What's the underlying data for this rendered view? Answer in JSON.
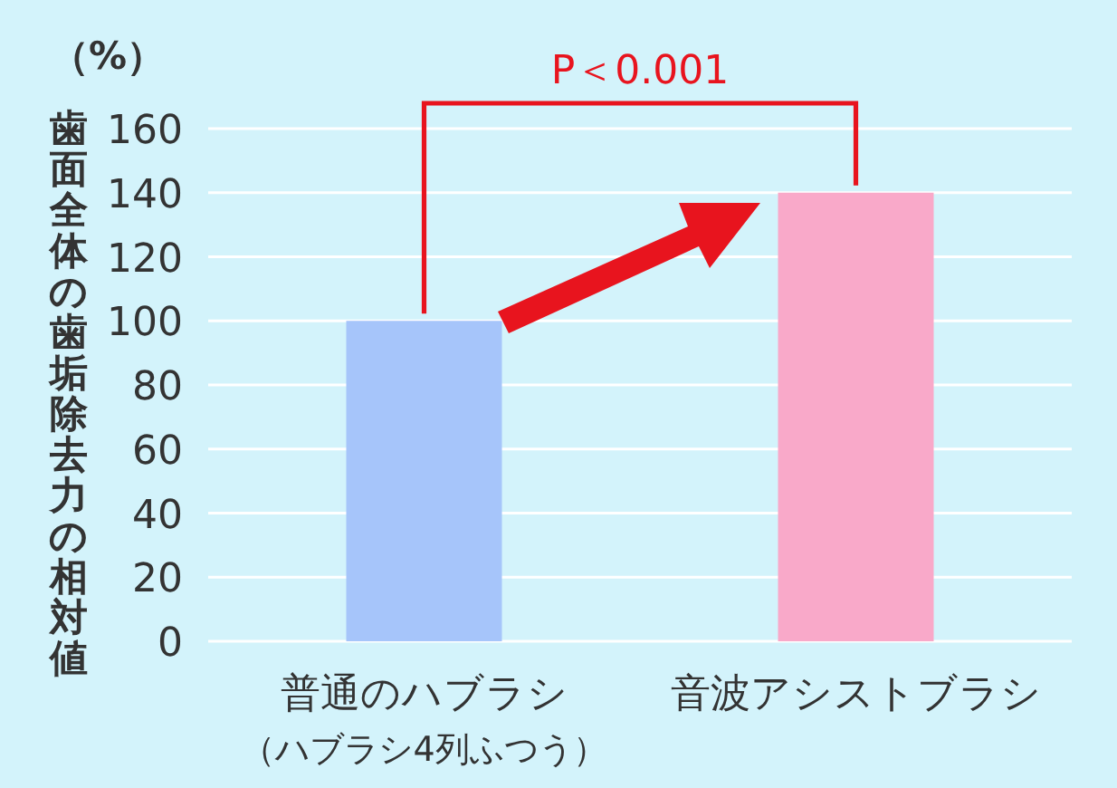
{
  "chart_data": {
    "type": "bar",
    "categories": [
      "普通のハブラシ",
      "音波アシストブラシ"
    ],
    "values": [
      100,
      140
    ],
    "colors": [
      "#a6c5fa",
      "#f9a9c9"
    ],
    "ylabel": "歯面全体の歯垢除去力の相対値",
    "ylim": [
      0,
      160
    ],
    "yticks": [
      0,
      20,
      40,
      60,
      80,
      100,
      120,
      140,
      160
    ],
    "grid": "y",
    "annotations": [
      "（%）",
      "P＜0.001",
      "（ハブラシ4列ふつう）"
    ]
  }
}
